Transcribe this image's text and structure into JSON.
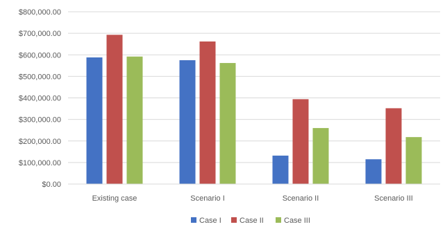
{
  "chart_data": {
    "type": "bar",
    "categories": [
      "Existing case",
      "Scenario I",
      "Scenario II",
      "Scenario III"
    ],
    "series": [
      {
        "name": "Case I",
        "color": "#4472C4",
        "values": [
          588000,
          575000,
          132000,
          115000
        ]
      },
      {
        "name": "Case II",
        "color": "#C0504D",
        "values": [
          693000,
          662000,
          394000,
          352000
        ]
      },
      {
        "name": "Case III",
        "color": "#9BBB59",
        "values": [
          592000,
          562000,
          260000,
          218000
        ]
      }
    ],
    "y_ticks": [
      "$0.00",
      "$100,000.00",
      "$200,000.00",
      "$300,000.00",
      "$400,000.00",
      "$500,000.00",
      "$600,000.00",
      "$700,000.00",
      "$800,000.00"
    ],
    "ylim": [
      0,
      800000
    ],
    "grid": true,
    "legend_position": "bottom",
    "title": "",
    "xlabel": "",
    "ylabel": ""
  }
}
